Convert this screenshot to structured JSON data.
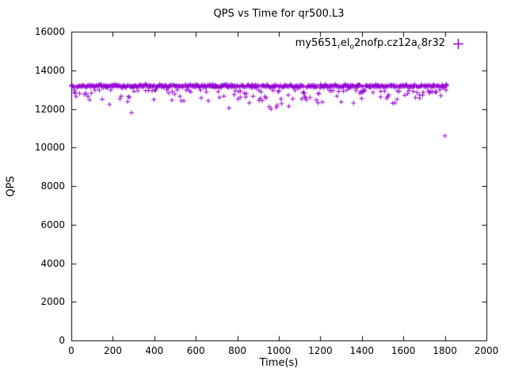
{
  "chart_data": {
    "type": "scatter",
    "title": "QPS vs Time for qr500.L3",
    "xlabel": "Time(s)",
    "ylabel": "QPS",
    "xlim": [
      0,
      2000
    ],
    "ylim": [
      0,
      16000
    ],
    "xticks": [
      "0",
      "200",
      "400",
      "600",
      "800",
      "1000",
      "1200",
      "1400",
      "1600",
      "1800",
      "2000"
    ],
    "yticks": [
      "0",
      "2000",
      "4000",
      "6000",
      "8000",
      "10000",
      "12000",
      "14000",
      "16000"
    ],
    "grid": false,
    "legend_position": "top-right-inside",
    "series": [
      {
        "name": "my5651_rel_o2nofp.cz12a_c8r32",
        "marker": "plus",
        "color": "#9400D3",
        "x_range": [
          0,
          1810
        ],
        "point_count": 650,
        "band": {
          "center": 13180,
          "jitter": 100
        },
        "dip": {
          "probability": 0.2,
          "min": 11950,
          "max": 12980
        },
        "outliers": [
          [
            290,
            11800
          ],
          [
            1800,
            10600
          ]
        ],
        "seed": 42
      }
    ]
  },
  "legend": {
    "parts": [
      {
        "t": "my5651"
      },
      {
        "t": "r",
        "sub": true
      },
      {
        "t": "el"
      },
      {
        "t": "o",
        "sub": true
      },
      {
        "t": "2nofp.cz12a"
      },
      {
        "t": "c",
        "sub": true
      },
      {
        "t": "8r32"
      }
    ]
  },
  "colors": {
    "marker": "#9400D3",
    "axis": "#000000",
    "background": "#ffffff"
  }
}
